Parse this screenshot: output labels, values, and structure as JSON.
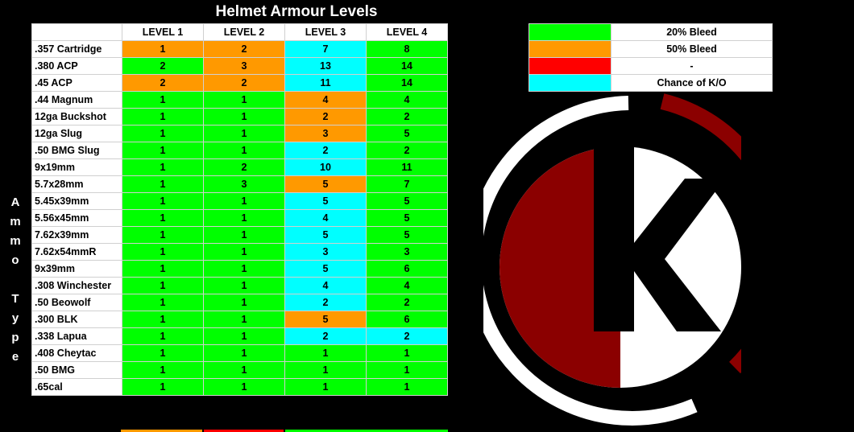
{
  "title": "Helmet Armour Levels",
  "side_label": [
    "A",
    "m",
    "m",
    "o",
    "",
    "T",
    "y",
    "p",
    "e"
  ],
  "columns": [
    "LEVEL 1",
    "LEVEL 2",
    "LEVEL 3",
    "LEVEL 4"
  ],
  "colors": {
    "g": "#00ff00",
    "o": "#ff9900",
    "c": "#00ffff",
    "r": "#ff0000",
    "logo_red": "#8b0000",
    "logo_white": "#ffffff"
  },
  "rows": [
    {
      "name": ".357 Cartridge",
      "values": [
        "1",
        "2",
        "7",
        "8"
      ],
      "colors": [
        "o",
        "o",
        "c",
        "g"
      ]
    },
    {
      "name": ".380 ACP",
      "values": [
        "2",
        "3",
        "13",
        "14"
      ],
      "colors": [
        "g",
        "o",
        "c",
        "g"
      ]
    },
    {
      "name": ".45 ACP",
      "values": [
        "2",
        "2",
        "11",
        "14"
      ],
      "colors": [
        "o",
        "o",
        "c",
        "g"
      ]
    },
    {
      "name": ".44 Magnum",
      "values": [
        "1",
        "1",
        "4",
        "4"
      ],
      "colors": [
        "g",
        "g",
        "o",
        "g"
      ]
    },
    {
      "name": "12ga Buckshot",
      "values": [
        "1",
        "1",
        "2",
        "2"
      ],
      "colors": [
        "g",
        "g",
        "o",
        "g"
      ]
    },
    {
      "name": "12ga Slug",
      "values": [
        "1",
        "1",
        "3",
        "5"
      ],
      "colors": [
        "g",
        "g",
        "o",
        "g"
      ]
    },
    {
      "name": ".50 BMG Slug",
      "values": [
        "1",
        "1",
        "2",
        "2"
      ],
      "colors": [
        "g",
        "g",
        "c",
        "g"
      ]
    },
    {
      "name": "9x19mm",
      "values": [
        "1",
        "2",
        "10",
        "11"
      ],
      "colors": [
        "g",
        "g",
        "c",
        "g"
      ]
    },
    {
      "name": "5.7x28mm",
      "values": [
        "1",
        "3",
        "5",
        "7"
      ],
      "colors": [
        "g",
        "g",
        "o",
        "g"
      ]
    },
    {
      "name": "5.45x39mm",
      "values": [
        "1",
        "1",
        "5",
        "5"
      ],
      "colors": [
        "g",
        "g",
        "c",
        "g"
      ]
    },
    {
      "name": "5.56x45mm",
      "values": [
        "1",
        "1",
        "4",
        "5"
      ],
      "colors": [
        "g",
        "g",
        "c",
        "g"
      ]
    },
    {
      "name": "7.62x39mm",
      "values": [
        "1",
        "1",
        "5",
        "5"
      ],
      "colors": [
        "g",
        "g",
        "c",
        "g"
      ]
    },
    {
      "name": "7.62x54mmR",
      "values": [
        "1",
        "1",
        "3",
        "3"
      ],
      "colors": [
        "g",
        "g",
        "c",
        "g"
      ]
    },
    {
      "name": "9x39mm",
      "values": [
        "1",
        "1",
        "5",
        "6"
      ],
      "colors": [
        "g",
        "g",
        "c",
        "g"
      ]
    },
    {
      "name": ".308 Winchester",
      "values": [
        "1",
        "1",
        "4",
        "4"
      ],
      "colors": [
        "g",
        "g",
        "c",
        "g"
      ]
    },
    {
      "name": ".50 Beowolf",
      "values": [
        "1",
        "1",
        "2",
        "2"
      ],
      "colors": [
        "g",
        "g",
        "c",
        "g"
      ]
    },
    {
      "name": ".300 BLK",
      "values": [
        "1",
        "1",
        "5",
        "6"
      ],
      "colors": [
        "g",
        "g",
        "o",
        "g"
      ]
    },
    {
      "name": ".338 Lapua",
      "values": [
        "1",
        "1",
        "2",
        "2"
      ],
      "colors": [
        "g",
        "g",
        "c",
        "c"
      ]
    },
    {
      "name": ".408 Cheytac",
      "values": [
        "1",
        "1",
        "1",
        "1"
      ],
      "colors": [
        "g",
        "g",
        "g",
        "g"
      ]
    },
    {
      "name": ".50 BMG",
      "values": [
        "1",
        "1",
        "1",
        "1"
      ],
      "colors": [
        "g",
        "g",
        "g",
        "g"
      ]
    },
    {
      "name": ".65cal",
      "values": [
        "1",
        "1",
        "1",
        "1"
      ],
      "colors": [
        "g",
        "g",
        "g",
        "g"
      ]
    }
  ],
  "legend": [
    {
      "color": "g",
      "label": "20% Bleed"
    },
    {
      "color": "o",
      "label": "50% Bleed"
    },
    {
      "color": "r",
      "label": "-"
    },
    {
      "color": "c",
      "label": "Chance of K/O"
    }
  ],
  "logo": {
    "letter": "K",
    "name": "k-logo"
  }
}
